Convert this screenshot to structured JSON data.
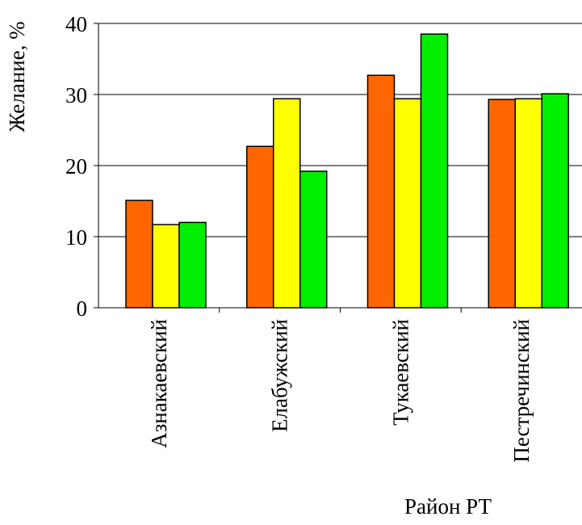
{
  "chart_data": {
    "type": "bar",
    "title": "",
    "xlabel": "Район РТ",
    "ylabel": "Желание, %",
    "ylim": [
      0,
      40
    ],
    "yticks": [
      0,
      10,
      20,
      30,
      40
    ],
    "grid": true,
    "categories": [
      "Азнакаевский",
      "Елабужский",
      "Тукаевский",
      "Пестречинский"
    ],
    "series": [
      {
        "color": "#FF6600",
        "values": [
          15.1,
          22.7,
          32.7,
          29.3
        ]
      },
      {
        "color": "#FFFF00",
        "values": [
          11.7,
          29.4,
          29.4,
          29.4
        ]
      },
      {
        "color": "#00EE00",
        "values": [
          12.0,
          19.2,
          38.5,
          30.1
        ]
      }
    ]
  }
}
